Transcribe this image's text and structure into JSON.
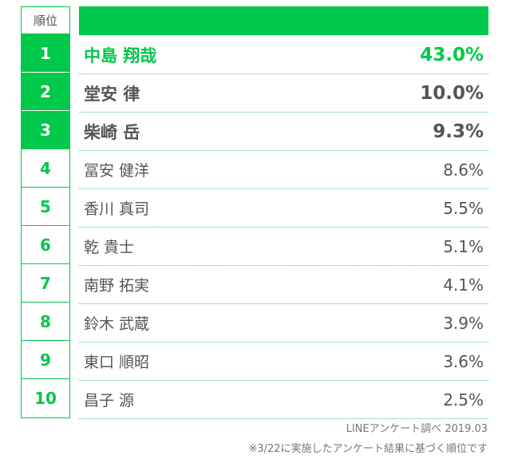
{
  "table": {
    "rank_header": "順位",
    "rows": [
      {
        "rank": "1",
        "name": "中島 翔哉",
        "percent": "43.0%"
      },
      {
        "rank": "2",
        "name": "堂安 律",
        "percent": "10.0%"
      },
      {
        "rank": "3",
        "name": "柴崎 岳",
        "percent": "9.3%"
      },
      {
        "rank": "4",
        "name": "冨安 健洋",
        "percent": "8.6%"
      },
      {
        "rank": "5",
        "name": "香川 真司",
        "percent": "5.5%"
      },
      {
        "rank": "6",
        "name": "乾 貴士",
        "percent": "5.1%"
      },
      {
        "rank": "7",
        "name": "南野 拓実",
        "percent": "4.1%"
      },
      {
        "rank": "8",
        "name": "鈴木 武蔵",
        "percent": "3.9%"
      },
      {
        "rank": "9",
        "name": "東口 順昭",
        "percent": "3.6%"
      },
      {
        "rank": "10",
        "name": "昌子 源",
        "percent": "2.5%"
      }
    ]
  },
  "footer": {
    "source": "LINEアンケート調べ 2019.03",
    "note": "※3/22に実施したアンケート結果に基づく順位です"
  },
  "colors": {
    "accent": "#00c84a",
    "text": "#555555"
  }
}
